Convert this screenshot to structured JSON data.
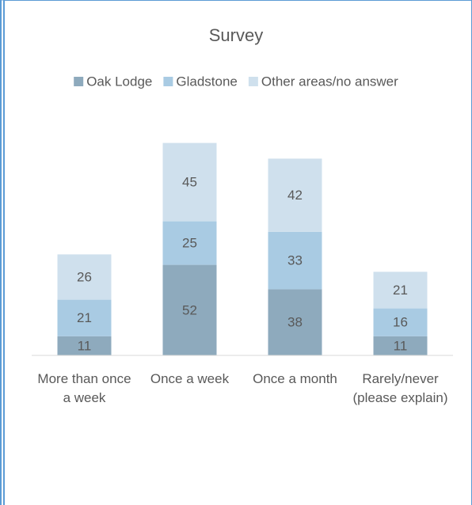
{
  "chart_data": {
    "type": "bar",
    "stacked": true,
    "title": "Survey",
    "categories": [
      "More than once a week",
      "Once a week",
      "Once a month",
      "Rarely/never (please explain)"
    ],
    "series": [
      {
        "name": "Oak Lodge",
        "color": "#8eaabd",
        "values": [
          11,
          52,
          38,
          11
        ]
      },
      {
        "name": "Gladstone",
        "color": "#a9cbe3",
        "values": [
          21,
          25,
          33,
          16
        ]
      },
      {
        "name": "Other areas/no answer",
        "color": "#cfe0ed",
        "values": [
          26,
          45,
          42,
          21
        ]
      }
    ],
    "ylim": [
      0,
      140
    ],
    "legend": "top",
    "grid": false
  }
}
